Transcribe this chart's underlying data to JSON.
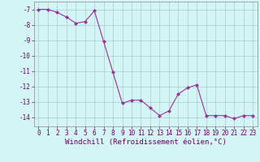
{
  "x": [
    0,
    1,
    2,
    3,
    4,
    5,
    6,
    7,
    8,
    9,
    10,
    11,
    12,
    13,
    14,
    15,
    16,
    17,
    18,
    19,
    20,
    21,
    22,
    23
  ],
  "y": [
    -7.0,
    -7.0,
    -7.2,
    -7.5,
    -7.9,
    -7.8,
    -7.1,
    -9.1,
    -11.1,
    -13.1,
    -12.9,
    -12.9,
    -13.4,
    -13.9,
    -13.6,
    -12.5,
    -12.1,
    -11.9,
    -13.9,
    -13.9,
    -13.9,
    -14.1,
    -13.9,
    -13.9
  ],
  "line_color": "#993399",
  "marker": "D",
  "marker_size": 2,
  "bg_color": "#d4f5f5",
  "grid_color": "#aacccc",
  "xlabel": "Windchill (Refroidissement éolien,°C)",
  "ylabel": "",
  "xlim": [
    -0.5,
    23.5
  ],
  "ylim": [
    -14.6,
    -6.5
  ],
  "xticks": [
    0,
    1,
    2,
    3,
    4,
    5,
    6,
    7,
    8,
    9,
    10,
    11,
    12,
    13,
    14,
    15,
    16,
    17,
    18,
    19,
    20,
    21,
    22,
    23
  ],
  "yticks": [
    -7,
    -8,
    -9,
    -10,
    -11,
    -12,
    -13,
    -14
  ],
  "label_color": "#660066",
  "axis_fontsize": 6.5,
  "tick_fontsize": 5.5
}
